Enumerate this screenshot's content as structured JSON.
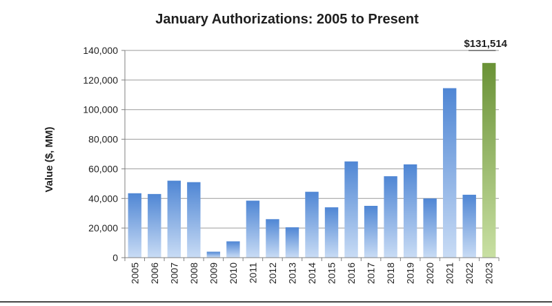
{
  "chart_data": {
    "type": "bar",
    "title": "January Authorizations: 2005 to Present",
    "ylabel": "Value ($, MM)",
    "xlabel": "",
    "ylim": [
      0,
      140000
    ],
    "yticks": [
      0,
      20000,
      40000,
      60000,
      80000,
      100000,
      120000,
      140000
    ],
    "ytick_labels": [
      "0",
      "20,000",
      "40,000",
      "60,000",
      "80,000",
      "100,000",
      "120,000",
      "140,000"
    ],
    "grid": true,
    "categories": [
      "2005",
      "2006",
      "2007",
      "2008",
      "2009",
      "2010",
      "2011",
      "2012",
      "2013",
      "2014",
      "2015",
      "2016",
      "2017",
      "2018",
      "2019",
      "2020",
      "2021",
      "2022",
      "2023"
    ],
    "values": [
      43500,
      43000,
      52000,
      51000,
      4000,
      11000,
      38500,
      26000,
      20500,
      44500,
      34000,
      65000,
      35000,
      55000,
      63000,
      40000,
      114500,
      42500,
      131514
    ],
    "highlight_index": 18,
    "annotation": "$131,514",
    "colors": {
      "bar_top": "#4f86d4",
      "bar_bottom": "#c9dcf5",
      "highlight_top": "#6a9236",
      "highlight_bottom": "#c9e0a3",
      "grid": "#9a9a9a",
      "axis": "#7f7f7f"
    }
  }
}
